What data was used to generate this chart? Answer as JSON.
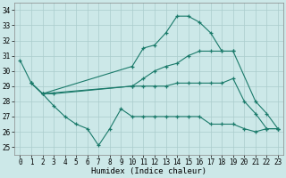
{
  "xlabel": "Humidex (Indice chaleur)",
  "bg_color": "#cce8e8",
  "line_color": "#1a7a6a",
  "grid_color": "#aacccc",
  "xlim": [
    -0.5,
    23.5
  ],
  "ylim": [
    24.5,
    34.5
  ],
  "yticks": [
    25,
    26,
    27,
    28,
    29,
    30,
    31,
    32,
    33,
    34
  ],
  "xticks": [
    0,
    1,
    2,
    3,
    4,
    5,
    6,
    7,
    8,
    9,
    10,
    11,
    12,
    13,
    14,
    15,
    16,
    17,
    18,
    19,
    20,
    21,
    22,
    23
  ],
  "lines": [
    {
      "x": [
        0,
        1,
        2,
        10,
        11,
        12,
        13,
        14,
        15,
        16,
        17,
        18,
        19
      ],
      "y": [
        30.7,
        29.2,
        28.5,
        30.3,
        31.5,
        31.7,
        32.5,
        33.6,
        33.6,
        33.2,
        32.5,
        31.3,
        31.3
      ]
    },
    {
      "x": [
        1,
        2,
        10,
        11,
        12,
        13,
        14,
        15,
        16,
        17,
        18,
        19,
        21,
        22,
        23
      ],
      "y": [
        29.2,
        28.5,
        29.0,
        29.5,
        30.0,
        30.3,
        30.5,
        31.0,
        31.3,
        31.3,
        31.3,
        31.3,
        28.0,
        27.2,
        26.2
      ]
    },
    {
      "x": [
        1,
        2,
        3,
        10,
        11,
        12,
        13,
        14,
        15,
        16,
        17,
        18,
        19,
        20,
        21,
        22,
        23
      ],
      "y": [
        29.2,
        28.5,
        28.5,
        29.0,
        29.0,
        29.0,
        29.0,
        29.2,
        29.2,
        29.2,
        29.2,
        29.2,
        29.5,
        28.0,
        27.2,
        26.2,
        26.2
      ]
    },
    {
      "x": [
        2,
        3,
        4,
        5,
        6,
        7,
        8,
        9,
        10,
        11,
        12,
        13,
        14,
        15,
        16,
        17,
        18,
        19,
        20,
        21,
        22,
        23
      ],
      "y": [
        28.5,
        27.7,
        27.0,
        26.5,
        26.2,
        25.1,
        26.2,
        27.5,
        27.0,
        27.0,
        27.0,
        27.0,
        27.0,
        27.0,
        27.0,
        26.5,
        26.5,
        26.5,
        26.2,
        26.0,
        26.2,
        26.2
      ]
    }
  ],
  "font_family": "monospace"
}
